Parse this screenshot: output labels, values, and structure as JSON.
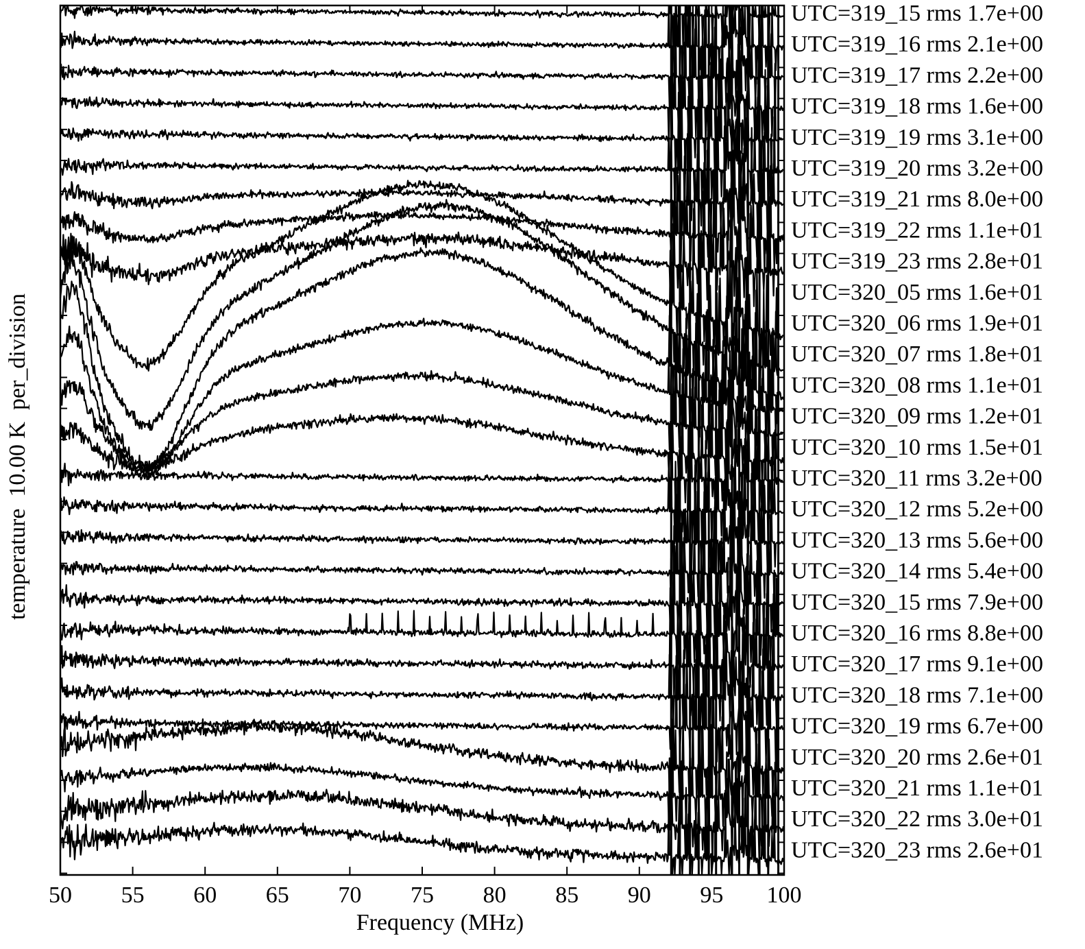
{
  "chart_data": {
    "type": "line",
    "title": "",
    "xlabel": "Frequency (MHz)",
    "ylabel": "temperature  10.00 K  per_division",
    "xlim": [
      50,
      100
    ],
    "xticks": [
      "50",
      "55",
      "60",
      "65",
      "70",
      "75",
      "80",
      "85",
      "90",
      "95",
      "100"
    ],
    "grid": false,
    "legend": "right-of-plot, one label per trace",
    "line_color": "#000000",
    "series": [
      {
        "label": "UTC=319_15 rms 1.7e+00",
        "rms": 1.7
      },
      {
        "label": "UTC=319_16 rms 2.1e+00",
        "rms": 2.1
      },
      {
        "label": "UTC=319_17 rms 2.2e+00",
        "rms": 2.2
      },
      {
        "label": "UTC=319_18 rms 1.6e+00",
        "rms": 1.6
      },
      {
        "label": "UTC=319_19 rms 3.1e+00",
        "rms": 3.1
      },
      {
        "label": "UTC=319_20 rms 3.2e+00",
        "rms": 3.2
      },
      {
        "label": "UTC=319_21 rms 8.0e+00",
        "rms": 8.0
      },
      {
        "label": "UTC=319_22 rms 1.1e+01",
        "rms": 11
      },
      {
        "label": "UTC=319_23 rms 2.8e+01",
        "rms": 28
      },
      {
        "label": "UTC=320_05 rms 1.6e+01",
        "rms": 16
      },
      {
        "label": "UTC=320_06 rms 1.9e+01",
        "rms": 19
      },
      {
        "label": "UTC=320_07 rms 1.8e+01",
        "rms": 18
      },
      {
        "label": "UTC=320_08 rms 1.1e+01",
        "rms": 11
      },
      {
        "label": "UTC=320_09 rms 1.2e+01",
        "rms": 12
      },
      {
        "label": "UTC=320_10 rms 1.5e+01",
        "rms": 15
      },
      {
        "label": "UTC=320_11 rms 3.2e+00",
        "rms": 3.2
      },
      {
        "label": "UTC=320_12 rms 5.2e+00",
        "rms": 5.2
      },
      {
        "label": "UTC=320_13 rms 5.6e+00",
        "rms": 5.6
      },
      {
        "label": "UTC=320_14 rms 5.4e+00",
        "rms": 5.4
      },
      {
        "label": "UTC=320_15 rms 7.9e+00",
        "rms": 7.9
      },
      {
        "label": "UTC=320_16 rms 8.8e+00",
        "rms": 8.8
      },
      {
        "label": "UTC=320_17 rms 9.1e+00",
        "rms": 9.1
      },
      {
        "label": "UTC=320_18 rms 7.1e+00",
        "rms": 7.1
      },
      {
        "label": "UTC=320_19 rms 6.7e+00",
        "rms": 6.7
      },
      {
        "label": "UTC=320_20 rms 2.6e+01",
        "rms": 26
      },
      {
        "label": "UTC=320_21 rms 1.1e+01",
        "rms": 11
      },
      {
        "label": "UTC=320_22 rms 3.0e+01",
        "rms": 30
      },
      {
        "label": "UTC=320_23 rms 2.6e+01",
        "rms": 26
      }
    ]
  }
}
